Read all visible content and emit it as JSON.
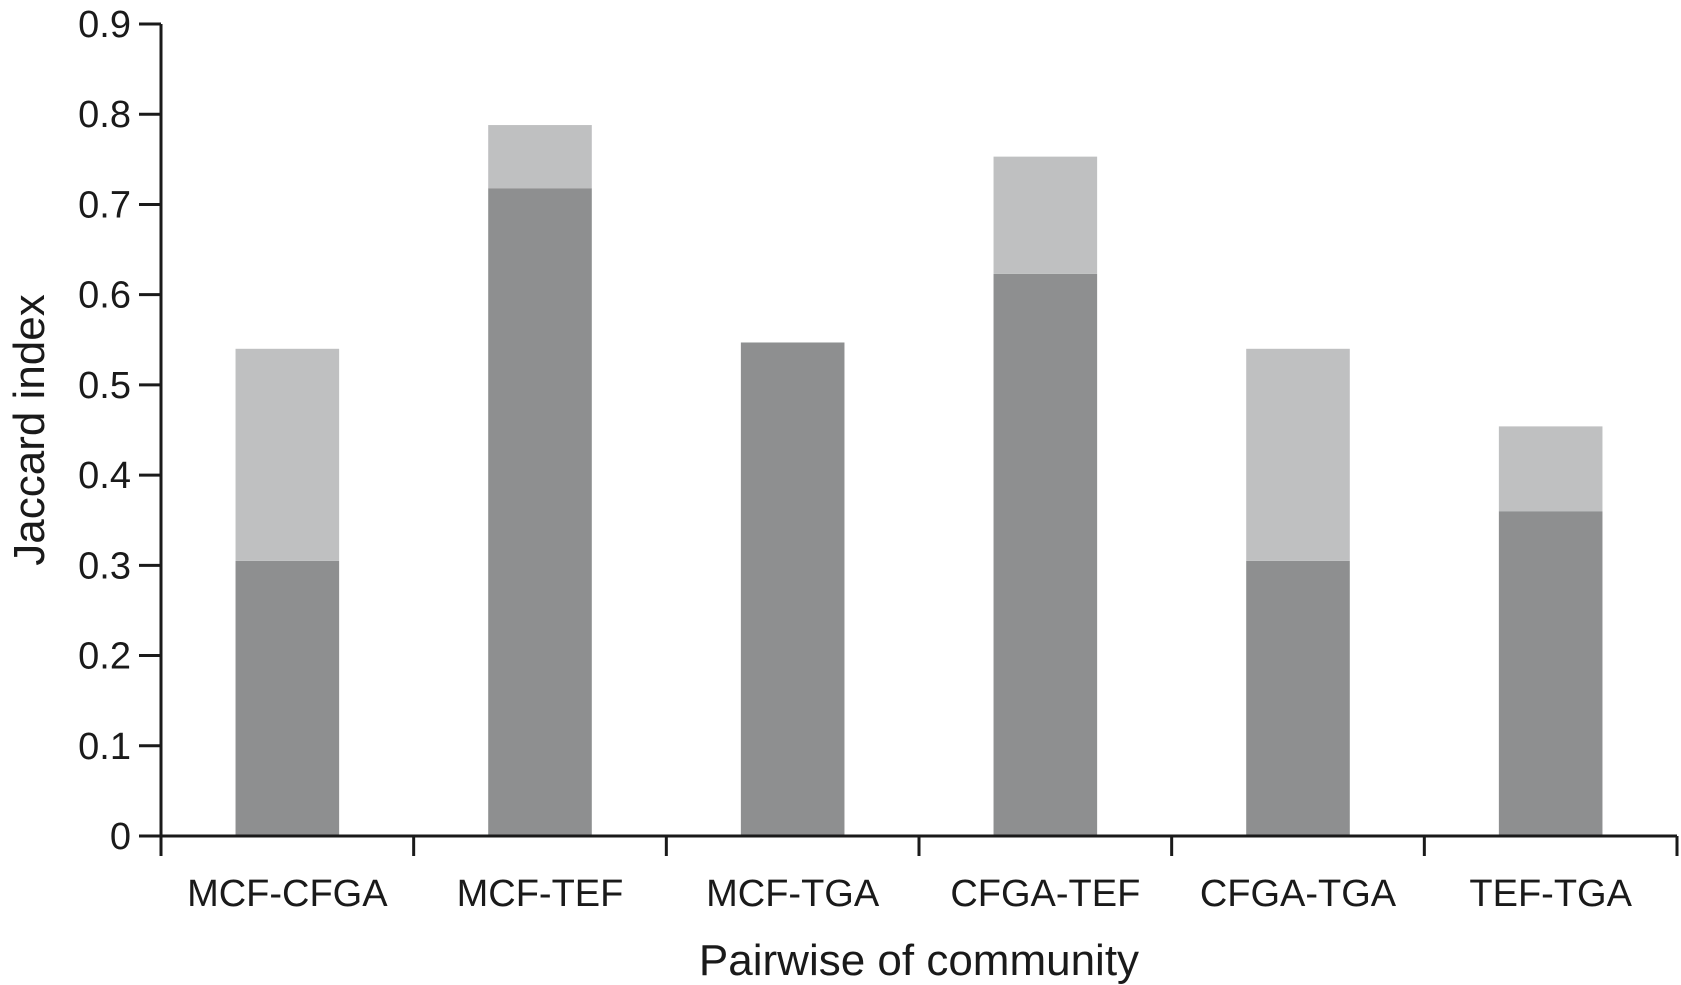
{
  "chart_data": {
    "type": "bar",
    "stacked": true,
    "title": "",
    "xlabel": "Pairwise of community",
    "ylabel": "Jaccard index",
    "ylim": [
      0,
      0.9
    ],
    "yticks": [
      "0",
      "0.1",
      "0.2",
      "0.3",
      "0.4",
      "0.5",
      "0.6",
      "0.7",
      "0.8",
      "0.9"
    ],
    "categories": [
      "MCF-CFGA",
      "MCF-TEF",
      "MCF-TGA",
      "CFGA-TEF",
      "CFGA-TGA",
      "TEF-TGA"
    ],
    "series": [
      {
        "values": [
          0.305,
          0.718,
          0.547,
          0.623,
          0.305,
          0.36
        ],
        "color": "#8e8f90"
      },
      {
        "values": [
          0.235,
          0.07,
          0.0,
          0.13,
          0.235,
          0.094
        ],
        "color": "#bfc0c1"
      }
    ],
    "grid": false,
    "legend": "none"
  }
}
